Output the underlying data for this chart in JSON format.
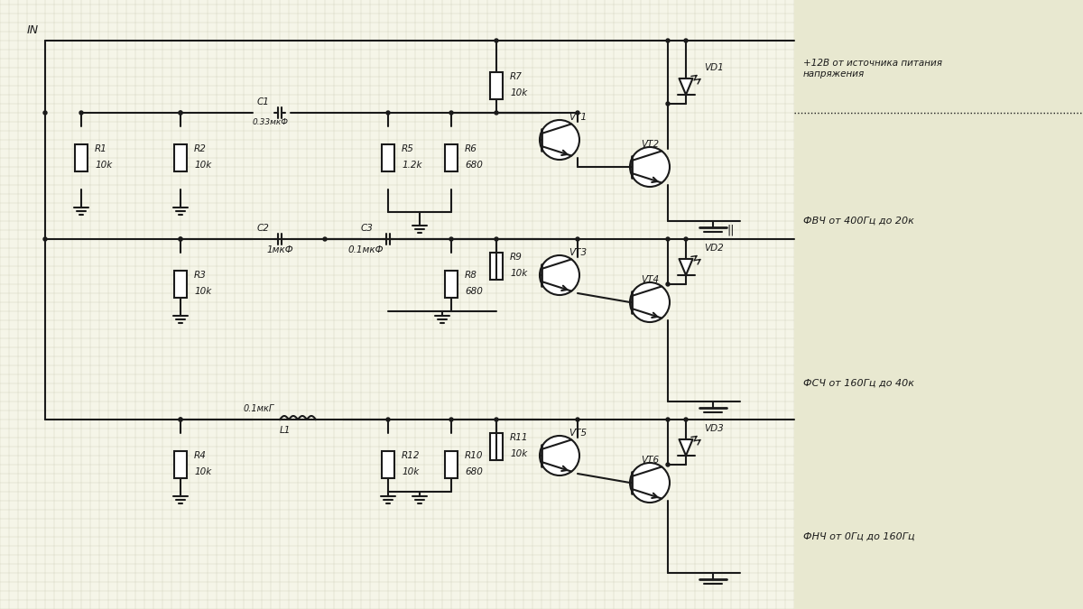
{
  "bg_color": "#f5f5e8",
  "line_color": "#1a1a1a",
  "text_color": "#1a1a1a",
  "grid_color": "#d0d0b8",
  "right_panel_color": "#e8e8d0",
  "annotations": {
    "title_label": "+12В от источника питания\nнапряжения",
    "ch1_label": "ФВЧ от 400Гц до 20к",
    "ch2_label": "ФСЧ от 160Гц до 40к",
    "ch3_label": "ФНЧ от 0Гц до 160Гц"
  }
}
